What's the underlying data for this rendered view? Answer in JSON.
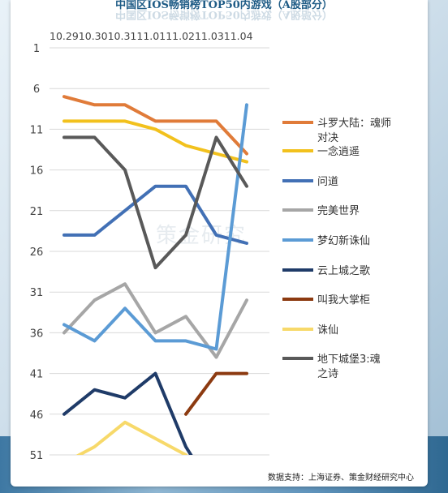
{
  "title": "中国区IOS畅销榜TOP50内游戏（A股部分）",
  "watermark": "策金研究",
  "source_note": "数据支持：上海证券、策金财经研究中心",
  "chart_data": {
    "type": "line",
    "title": "中国区IOS畅销榜TOP50内游戏（A股部分）",
    "categories": [
      "10.29",
      "10.30",
      "10.31",
      "11.01",
      "11.02",
      "11.03",
      "11.04"
    ],
    "y_axis": {
      "ticks": [
        1,
        6,
        11,
        16,
        21,
        26,
        31,
        36,
        41,
        46,
        51
      ],
      "ylim": [
        1,
        51
      ],
      "reversed": true
    },
    "grid": true,
    "legend_position": "right",
    "series": [
      {
        "name": "斗罗大陆：魂师对决",
        "color": "#e07b39",
        "values": [
          7,
          8,
          8,
          10,
          10,
          10,
          14
        ]
      },
      {
        "name": "一念逍遥",
        "color": "#f2c11d",
        "values": [
          10,
          10,
          10,
          11,
          13,
          14,
          15
        ]
      },
      {
        "name": "问道",
        "color": "#4270b5",
        "values": [
          24,
          24,
          21,
          18,
          18,
          24,
          25
        ]
      },
      {
        "name": "完美世界",
        "color": "#a6a6a6",
        "values": [
          36,
          32,
          30,
          36,
          34,
          39,
          32
        ]
      },
      {
        "name": "梦幻新诛仙",
        "color": "#5b9bd5",
        "values": [
          35,
          37,
          33,
          37,
          37,
          38,
          8
        ]
      },
      {
        "name": "云上城之歌",
        "color": "#1f3b68",
        "values": [
          46,
          43,
          44,
          41,
          50,
          56,
          null
        ]
      },
      {
        "name": "叫我大掌柜",
        "color": "#8c3a10",
        "values": [
          null,
          null,
          null,
          null,
          46,
          41,
          41
        ]
      },
      {
        "name": "诛仙",
        "color": "#f7d96a",
        "values": [
          52,
          50,
          47,
          49,
          51,
          null,
          null
        ]
      },
      {
        "name": "地下城堡3:魂之诗",
        "color": "#595959",
        "values": [
          12,
          12,
          16,
          28,
          24,
          12,
          18
        ]
      }
    ]
  }
}
